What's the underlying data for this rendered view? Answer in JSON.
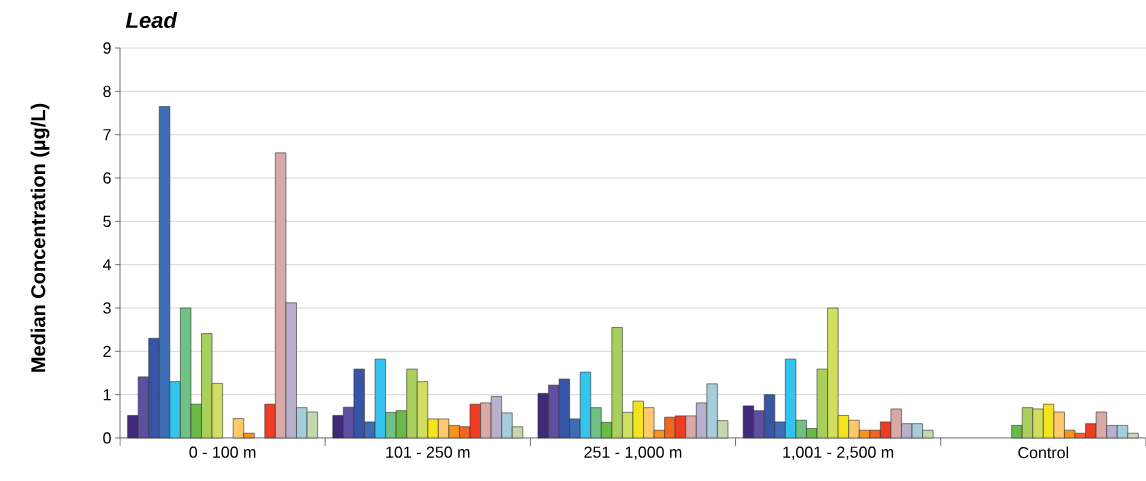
{
  "chart_data": {
    "type": "bar",
    "title": "Lead",
    "ylabel": "Median Concentration (µg/L)",
    "categories": [
      "0 - 100 m",
      "101 - 250 m",
      "251 - 1,000 m",
      "1,001 - 2,500 m",
      "Control"
    ],
    "ylim": [
      0,
      9
    ],
    "yticks": [
      0,
      1,
      2,
      3,
      4,
      5,
      6,
      7,
      8,
      9
    ],
    "grid": "y",
    "series": [
      {
        "color": "#3f2a7a",
        "values": [
          0.52,
          0.52,
          1.03,
          0.74,
          null
        ]
      },
      {
        "color": "#5e4fa2",
        "values": [
          1.41,
          0.71,
          1.22,
          0.63,
          null
        ]
      },
      {
        "color": "#3655a6",
        "values": [
          2.3,
          1.59,
          1.36,
          1.0,
          null
        ]
      },
      {
        "color": "#3d6db5",
        "values": [
          7.65,
          0.37,
          0.44,
          0.37,
          null
        ]
      },
      {
        "color": "#33c5f0",
        "values": [
          1.3,
          1.82,
          1.52,
          1.82,
          null
        ]
      },
      {
        "color": "#6fc283",
        "values": [
          3.0,
          0.59,
          0.7,
          0.41,
          null
        ]
      },
      {
        "color": "#69bb45",
        "values": [
          0.78,
          0.63,
          0.36,
          0.22,
          0.29
        ]
      },
      {
        "color": "#a9d05a",
        "values": [
          2.41,
          1.59,
          2.55,
          1.59,
          0.7
        ]
      },
      {
        "color": "#d0df60",
        "values": [
          1.26,
          1.3,
          0.59,
          3.0,
          0.67
        ]
      },
      {
        "color": "#f2e51c",
        "values": [
          null,
          0.44,
          0.85,
          0.52,
          0.78
        ]
      },
      {
        "color": "#fdc96b",
        "values": [
          0.45,
          0.44,
          0.7,
          0.41,
          0.6
        ]
      },
      {
        "color": "#f7941d",
        "values": [
          0.11,
          0.29,
          0.18,
          0.18,
          0.18
        ]
      },
      {
        "color": "#f26522",
        "values": [
          null,
          0.26,
          0.48,
          0.18,
          0.11
        ]
      },
      {
        "color": "#ee3d23",
        "values": [
          0.78,
          0.78,
          0.51,
          0.37,
          0.33
        ]
      },
      {
        "color": "#d9a9a8",
        "values": [
          6.58,
          0.81,
          0.51,
          0.67,
          0.6
        ]
      },
      {
        "color": "#b8b0cc",
        "values": [
          3.12,
          0.96,
          0.81,
          0.33,
          0.29
        ]
      },
      {
        "color": "#a7cddc",
        "values": [
          0.7,
          0.58,
          1.25,
          0.33,
          0.29
        ]
      },
      {
        "color": "#c5d7ad",
        "values": [
          0.6,
          0.26,
          0.4,
          0.18,
          0.11
        ]
      }
    ]
  }
}
